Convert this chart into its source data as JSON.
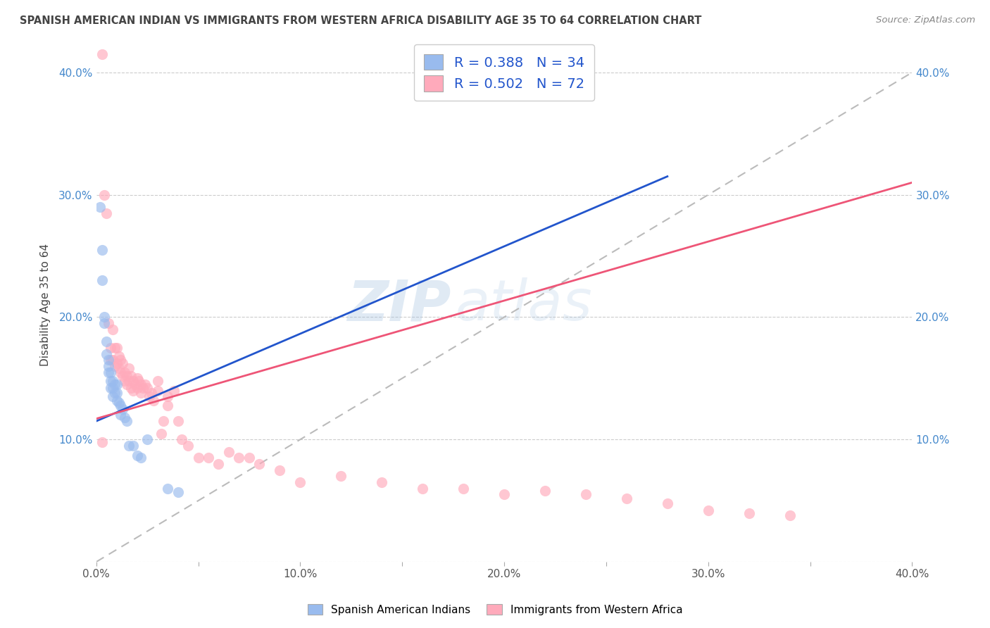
{
  "title": "SPANISH AMERICAN INDIAN VS IMMIGRANTS FROM WESTERN AFRICA DISABILITY AGE 35 TO 64 CORRELATION CHART",
  "source": "Source: ZipAtlas.com",
  "ylabel": "Disability Age 35 to 64",
  "xlim": [
    0.0,
    0.4
  ],
  "ylim": [
    0.0,
    0.42
  ],
  "xtick_labels": [
    "0.0%",
    "",
    "10.0%",
    "",
    "20.0%",
    "",
    "30.0%",
    "",
    "40.0%"
  ],
  "xtick_vals": [
    0.0,
    0.05,
    0.1,
    0.15,
    0.2,
    0.25,
    0.3,
    0.35,
    0.4
  ],
  "ytick_labels_left": [
    "",
    "10.0%",
    "20.0%",
    "30.0%",
    "40.0%"
  ],
  "ytick_vals_left": [
    0.0,
    0.1,
    0.2,
    0.3,
    0.4
  ],
  "ytick_labels_right": [
    "10.0%",
    "20.0%",
    "30.0%",
    "40.0%"
  ],
  "ytick_vals_right": [
    0.1,
    0.2,
    0.3,
    0.4
  ],
  "watermark_zip": "ZIP",
  "watermark_atlas": "atlas",
  "legend_label1": "Spanish American Indians",
  "legend_label2": "Immigrants from Western Africa",
  "color_blue": "#99bbee",
  "color_pink": "#ffaabb",
  "color_blue_line": "#2255cc",
  "color_pink_line": "#ee5577",
  "color_dashed_line": "#bbbbbb",
  "R1": 0.388,
  "N1": 34,
  "R2": 0.502,
  "N2": 72,
  "blue_points_x": [
    0.002,
    0.003,
    0.003,
    0.004,
    0.004,
    0.005,
    0.005,
    0.006,
    0.006,
    0.006,
    0.007,
    0.007,
    0.007,
    0.008,
    0.008,
    0.008,
    0.009,
    0.009,
    0.01,
    0.01,
    0.01,
    0.011,
    0.012,
    0.012,
    0.013,
    0.014,
    0.015,
    0.016,
    0.018,
    0.02,
    0.022,
    0.025,
    0.035,
    0.04
  ],
  "blue_points_y": [
    0.29,
    0.255,
    0.23,
    0.2,
    0.195,
    0.18,
    0.17,
    0.165,
    0.16,
    0.155,
    0.155,
    0.148,
    0.142,
    0.148,
    0.142,
    0.135,
    0.145,
    0.138,
    0.145,
    0.138,
    0.132,
    0.13,
    0.128,
    0.12,
    0.125,
    0.118,
    0.115,
    0.095,
    0.095,
    0.087,
    0.085,
    0.1,
    0.06,
    0.057
  ],
  "pink_points_x": [
    0.003,
    0.004,
    0.005,
    0.006,
    0.007,
    0.007,
    0.008,
    0.008,
    0.009,
    0.009,
    0.01,
    0.01,
    0.011,
    0.011,
    0.012,
    0.012,
    0.013,
    0.013,
    0.014,
    0.014,
    0.015,
    0.015,
    0.016,
    0.016,
    0.017,
    0.017,
    0.018,
    0.018,
    0.019,
    0.02,
    0.02,
    0.021,
    0.022,
    0.022,
    0.023,
    0.024,
    0.025,
    0.026,
    0.027,
    0.028,
    0.03,
    0.03,
    0.032,
    0.033,
    0.035,
    0.035,
    0.038,
    0.04,
    0.042,
    0.045,
    0.05,
    0.055,
    0.06,
    0.065,
    0.07,
    0.075,
    0.08,
    0.09,
    0.1,
    0.12,
    0.14,
    0.16,
    0.18,
    0.2,
    0.22,
    0.24,
    0.26,
    0.28,
    0.3,
    0.32,
    0.34,
    0.003
  ],
  "pink_points_y": [
    0.415,
    0.3,
    0.285,
    0.195,
    0.175,
    0.165,
    0.19,
    0.165,
    0.175,
    0.16,
    0.175,
    0.162,
    0.168,
    0.158,
    0.165,
    0.155,
    0.162,
    0.152,
    0.155,
    0.148,
    0.152,
    0.145,
    0.158,
    0.148,
    0.152,
    0.142,
    0.148,
    0.14,
    0.145,
    0.15,
    0.142,
    0.148,
    0.145,
    0.138,
    0.142,
    0.145,
    0.142,
    0.135,
    0.138,
    0.132,
    0.148,
    0.14,
    0.105,
    0.115,
    0.135,
    0.128,
    0.14,
    0.115,
    0.1,
    0.095,
    0.085,
    0.085,
    0.08,
    0.09,
    0.085,
    0.085,
    0.08,
    0.075,
    0.065,
    0.07,
    0.065,
    0.06,
    0.06,
    0.055,
    0.058,
    0.055,
    0.052,
    0.048,
    0.042,
    0.04,
    0.038,
    0.098
  ],
  "blue_line_x": [
    0.0,
    0.28
  ],
  "blue_line_y": [
    0.115,
    0.315
  ],
  "pink_line_x": [
    0.0,
    0.4
  ],
  "pink_line_y": [
    0.117,
    0.31
  ]
}
